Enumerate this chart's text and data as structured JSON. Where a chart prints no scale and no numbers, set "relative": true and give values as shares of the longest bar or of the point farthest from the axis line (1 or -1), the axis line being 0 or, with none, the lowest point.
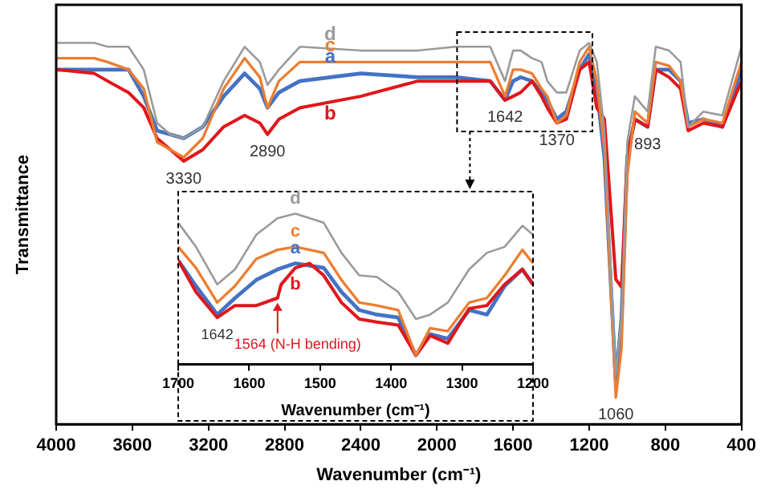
{
  "chart_data": [
    {
      "type": "line",
      "xlabel": "Wavenumber (cm⁻¹)",
      "ylabel": "Transmittance",
      "relative": true,
      "tick_labels": "x",
      "xlim": [
        4000,
        400
      ],
      "xticks": [
        4000,
        3600,
        3200,
        2800,
        2400,
        2000,
        1600,
        1200,
        800,
        400
      ],
      "x": [
        4000,
        3800,
        3730,
        3620,
        3540,
        3470,
        3400,
        3330,
        3230,
        3120,
        3010,
        2930,
        2890,
        2830,
        2720,
        2400,
        2100,
        1900,
        1720,
        1642,
        1600,
        1560,
        1500,
        1450,
        1420,
        1370,
        1320,
        1250,
        1200,
        1160,
        1120,
        1060,
        1030,
        1000,
        960,
        893,
        850,
        780,
        720,
        680,
        600,
        500,
        400
      ],
      "series": [
        {
          "name": "a",
          "color": "#4472c4",
          "values": [
            0.93,
            0.93,
            0.93,
            0.93,
            0.86,
            0.77,
            0.76,
            0.75,
            0.78,
            0.86,
            0.92,
            0.88,
            0.83,
            0.87,
            0.9,
            0.92,
            0.91,
            0.91,
            0.9,
            0.85,
            0.9,
            0.91,
            0.9,
            0.87,
            0.85,
            0.8,
            0.82,
            0.93,
            0.97,
            0.88,
            0.7,
            0.11,
            0.28,
            0.7,
            0.8,
            0.78,
            0.93,
            0.93,
            0.9,
            0.79,
            0.8,
            0.78,
            0.93
          ]
        },
        {
          "name": "b",
          "color": "#e0161b",
          "values": [
            0.93,
            0.92,
            0.9,
            0.87,
            0.83,
            0.75,
            0.72,
            0.69,
            0.72,
            0.78,
            0.81,
            0.79,
            0.76,
            0.8,
            0.83,
            0.86,
            0.9,
            0.9,
            0.9,
            0.85,
            0.86,
            0.87,
            0.9,
            0.86,
            0.83,
            0.79,
            0.8,
            0.93,
            0.95,
            0.83,
            0.8,
            0.38,
            0.36,
            0.7,
            0.8,
            0.78,
            0.93,
            0.91,
            0.88,
            0.77,
            0.79,
            0.78,
            0.9
          ]
        },
        {
          "name": "c",
          "color": "#ed7d31",
          "values": [
            0.96,
            0.96,
            0.95,
            0.93,
            0.88,
            0.74,
            0.72,
            0.7,
            0.75,
            0.88,
            0.96,
            0.91,
            0.83,
            0.9,
            0.95,
            0.95,
            0.95,
            0.95,
            0.95,
            0.86,
            0.93,
            0.93,
            0.92,
            0.88,
            0.86,
            0.79,
            0.81,
            0.95,
            0.99,
            0.9,
            0.72,
            0.07,
            0.2,
            0.65,
            0.82,
            0.79,
            0.95,
            0.94,
            0.9,
            0.78,
            0.8,
            0.79,
            0.95
          ]
        },
        {
          "name": "d",
          "color": "#9a9a9a",
          "values": [
            1,
            1,
            0.99,
            0.99,
            0.93,
            0.79,
            0.76,
            0.75,
            0.78,
            0.9,
            0.99,
            0.95,
            0.89,
            0.93,
            0.99,
            0.98,
            0.98,
            0.99,
            0.99,
            0.9,
            0.98,
            0.98,
            0.96,
            0.95,
            0.9,
            0.87,
            0.87,
            0.98,
            1,
            0.95,
            0.77,
            0.13,
            0.28,
            0.74,
            0.86,
            0.82,
            0.99,
            0.98,
            0.95,
            0.78,
            0.82,
            0.81,
            0.99
          ]
        }
      ],
      "annotations": [
        {
          "text": "3330",
          "x": 3330,
          "y": 0.69
        },
        {
          "text": "2890",
          "x": 2890,
          "y": 0.76
        },
        {
          "text": "1642",
          "x": 1642,
          "y": 0.85
        },
        {
          "text": "1370",
          "x": 1370,
          "y": 0.79
        },
        {
          "text": "893",
          "x": 893,
          "y": 0.78
        },
        {
          "text": "1060",
          "x": 1060,
          "y": 0.07
        }
      ]
    },
    {
      "type": "line",
      "xlabel": "Wavenumber (cm⁻¹)",
      "relative": true,
      "tick_labels": "x",
      "xlim": [
        1700,
        1200
      ],
      "xticks": [
        1700,
        1600,
        1500,
        1400,
        1300,
        1200
      ],
      "x": [
        1700,
        1675,
        1645,
        1620,
        1590,
        1560,
        1535,
        1495,
        1470,
        1445,
        1420,
        1390,
        1365,
        1345,
        1320,
        1290,
        1265,
        1240,
        1215,
        1200
      ],
      "series": [
        {
          "name": "a",
          "color": "#4472c4",
          "values": [
            0.69,
            0.52,
            0.33,
            0.44,
            0.56,
            0.63,
            0.67,
            0.64,
            0.48,
            0.36,
            0.33,
            0.31,
            0.06,
            0.2,
            0.17,
            0.36,
            0.33,
            0.52,
            0.63,
            0.53
          ]
        },
        {
          "name": "b",
          "color": "#e0161b",
          "x": [
            1700,
            1675,
            1645,
            1620,
            1590,
            1560,
            1555,
            1535,
            1515,
            1495,
            1470,
            1445,
            1420,
            1390,
            1365,
            1345,
            1320,
            1290,
            1265,
            1240,
            1215,
            1200
          ],
          "values": [
            0.69,
            0.48,
            0.31,
            0.39,
            0.39,
            0.44,
            0.53,
            0.64,
            0.67,
            0.59,
            0.41,
            0.3,
            0.28,
            0.26,
            0.06,
            0.19,
            0.14,
            0.37,
            0.39,
            0.53,
            0.63,
            0.53
          ]
        },
        {
          "name": "c",
          "color": "#ed7d31",
          "values": [
            0.78,
            0.64,
            0.41,
            0.52,
            0.7,
            0.76,
            0.78,
            0.74,
            0.56,
            0.41,
            0.39,
            0.36,
            0.06,
            0.24,
            0.22,
            0.41,
            0.44,
            0.59,
            0.76,
            0.67
          ]
        },
        {
          "name": "d",
          "color": "#9a9a9a",
          "values": [
            0.94,
            0.78,
            0.53,
            0.63,
            0.86,
            0.97,
            1,
            0.94,
            0.74,
            0.59,
            0.58,
            0.48,
            0.3,
            0.33,
            0.41,
            0.63,
            0.74,
            0.78,
            0.92,
            0.86
          ]
        }
      ],
      "annotations": [
        {
          "text": "1642",
          "x": 1645,
          "y": 0.31
        },
        {
          "text": "1564 (N-H bending)",
          "x": 1560,
          "y": 0.44
        }
      ]
    }
  ]
}
